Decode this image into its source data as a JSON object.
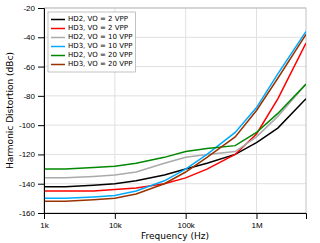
{
  "chart_data": {
    "type": "line",
    "xlabel": "Frequency (Hz)",
    "ylabel": "Harmonic Distortion (dBc)",
    "log": "x",
    "grid": true,
    "legend": "upper left",
    "xlim": [
      1000,
      5000000
    ],
    "xticks": [
      {
        "value": 1000,
        "label": "1k"
      },
      {
        "value": 10000,
        "label": "10k"
      },
      {
        "value": 100000,
        "label": "100k"
      },
      {
        "value": 1000000,
        "label": "1M"
      }
    ],
    "ylim": [
      -160,
      -20
    ],
    "yticks": [
      -160,
      -140,
      -120,
      -100,
      -80,
      -60,
      -40,
      -20
    ],
    "x": [
      1000,
      2000,
      5000,
      10000,
      20000,
      50000,
      100000,
      200000,
      500000,
      1000000,
      2000000,
      5000000
    ],
    "series": [
      {
        "name": "HD2, VO = 2 VPP",
        "color": "#000000",
        "values": [
          -142,
          -142,
          -141,
          -140,
          -138,
          -134,
          -130,
          -126,
          -120,
          -112,
          -102,
          -82
        ]
      },
      {
        "name": "HD3, VO = 2 VPP",
        "color": "#ff0000",
        "values": [
          -145,
          -145,
          -145,
          -144,
          -143,
          -140,
          -136,
          -130,
          -120,
          -106,
          -82,
          -44
        ]
      },
      {
        "name": "HD2, VO = 10 VPP",
        "color": "#aaaaaa",
        "values": [
          -136,
          -136,
          -135,
          -134,
          -132,
          -126,
          -122,
          -120,
          -118,
          -108,
          -94,
          -72
        ]
      },
      {
        "name": "HD3, VO = 10 VPP",
        "color": "#00aaff",
        "values": [
          -150,
          -150,
          -149,
          -148,
          -145,
          -138,
          -130,
          -120,
          -105,
          -88,
          -65,
          -36
        ]
      },
      {
        "name": "HD2, VO = 20 VPP",
        "color": "#008800",
        "values": [
          -130,
          -130,
          -129,
          -128,
          -126,
          -122,
          -118,
          -116,
          -114,
          -105,
          -92,
          -72
        ]
      },
      {
        "name": "HD3, VO = 20 VPP",
        "color": "#993300",
        "values": [
          -152,
          -152,
          -151,
          -150,
          -147,
          -140,
          -132,
          -122,
          -108,
          -90,
          -68,
          -38
        ]
      }
    ]
  }
}
